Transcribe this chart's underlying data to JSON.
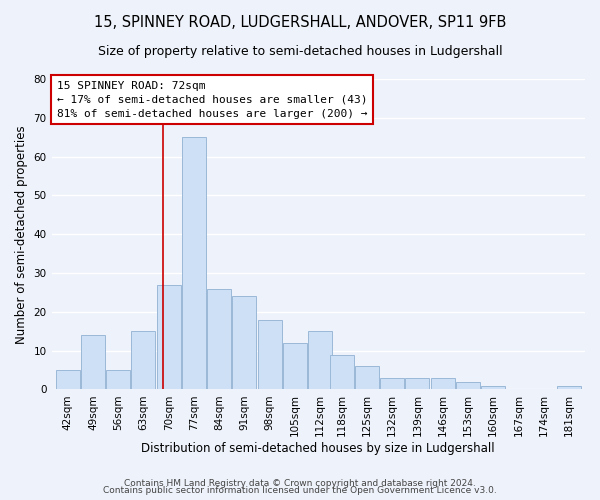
{
  "title": "15, SPINNEY ROAD, LUDGERSHALL, ANDOVER, SP11 9FB",
  "subtitle": "Size of property relative to semi-detached houses in Ludgershall",
  "xlabel": "Distribution of semi-detached houses by size in Ludgershall",
  "ylabel": "Number of semi-detached properties",
  "footer_line1": "Contains HM Land Registry data © Crown copyright and database right 2024.",
  "footer_line2": "Contains public sector information licensed under the Open Government Licence v3.0.",
  "bins": [
    42,
    49,
    56,
    63,
    70,
    77,
    84,
    91,
    98,
    105,
    112,
    118,
    125,
    132,
    139,
    146,
    153,
    160,
    167,
    174,
    181
  ],
  "bar_heights": [
    5,
    14,
    5,
    15,
    27,
    65,
    26,
    24,
    18,
    12,
    15,
    9,
    6,
    3,
    3,
    3,
    2,
    1,
    0,
    0,
    1
  ],
  "bin_width": 7,
  "bar_color": "#cde0f5",
  "bar_edgecolor": "#9ab8d8",
  "red_line_x": 72,
  "ylim": [
    0,
    80
  ],
  "yticks": [
    0,
    10,
    20,
    30,
    40,
    50,
    60,
    70,
    80
  ],
  "annotation_title": "15 SPINNEY ROAD: 72sqm",
  "annotation_line1": "← 17% of semi-detached houses are smaller (43)",
  "annotation_line2": "81% of semi-detached houses are larger (200) →",
  "annotation_box_facecolor": "#ffffff",
  "annotation_box_edgecolor": "#cc0000",
  "background_color": "#eef2fa",
  "grid_color": "#ffffff",
  "title_fontsize": 10.5,
  "subtitle_fontsize": 9,
  "axis_label_fontsize": 8.5,
  "tick_fontsize": 7.5,
  "annotation_fontsize": 8,
  "footer_fontsize": 6.5
}
